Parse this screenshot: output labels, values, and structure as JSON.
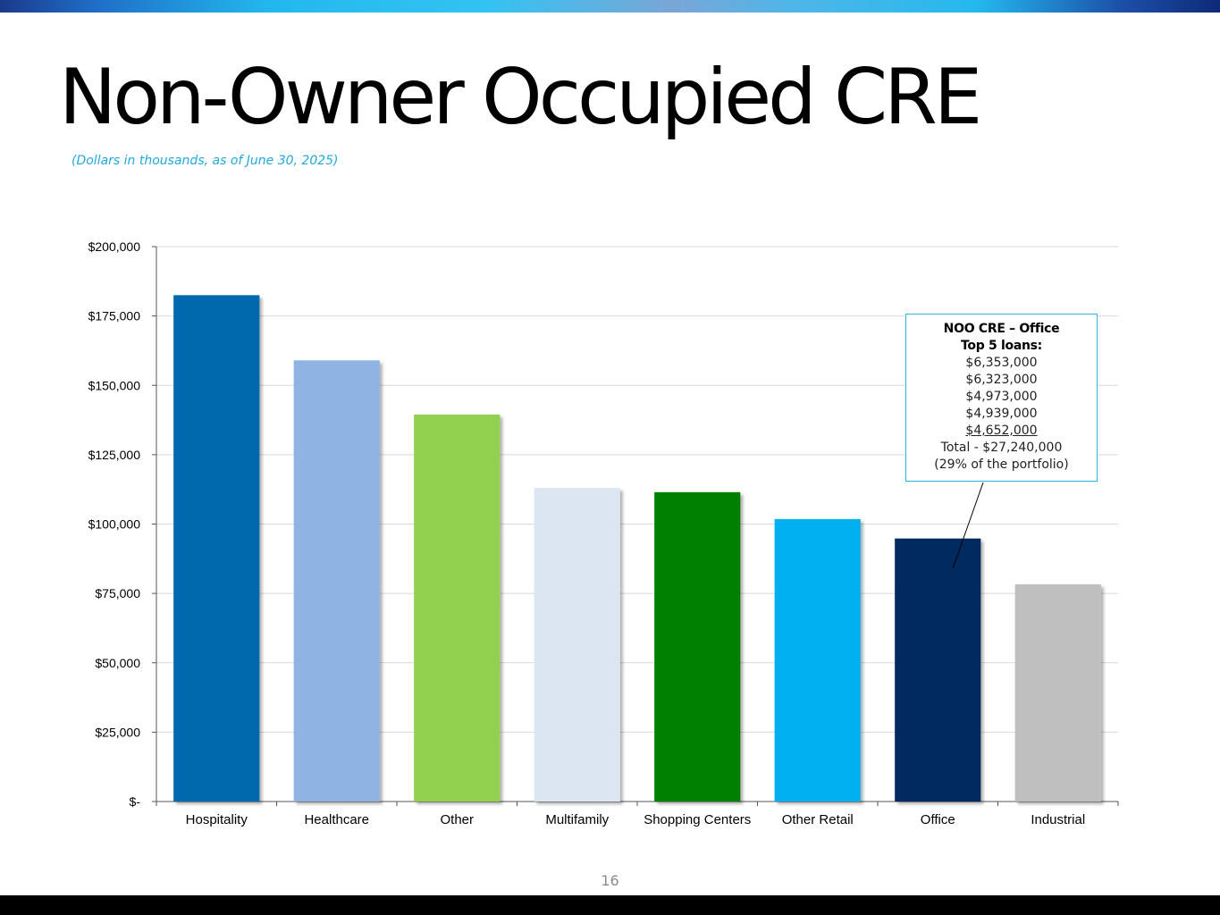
{
  "slide": {
    "title": "Non-Owner Occupied CRE",
    "subtitle": "(Dollars in thousands, as of June 30, 2025)",
    "page_number": "16"
  },
  "callout": {
    "heading": "NOO CRE – Office",
    "subheading": "Top 5 loans:",
    "loans": [
      "$6,353,000",
      "$6,323,000",
      "$4,973,000",
      "$4,939,000",
      "$4,652,000"
    ],
    "total": "Total - $27,240,000",
    "share": "(29% of the portfolio)",
    "points_to": "Office"
  },
  "chart_data": {
    "type": "bar",
    "categories": [
      "Hospitality",
      "Healthcare",
      "Other",
      "Multifamily",
      "Shopping Centers",
      "Other Retail",
      "Office",
      "Industrial"
    ],
    "values": [
      182500,
      159000,
      139500,
      113000,
      111500,
      101800,
      94800,
      78300
    ],
    "colors": [
      "#0068ac",
      "#8fb3e2",
      "#92d050",
      "#dce6f2",
      "#008000",
      "#00b0f0",
      "#002c60",
      "#bfbfbf"
    ],
    "yticks": [
      0,
      25000,
      50000,
      75000,
      100000,
      125000,
      150000,
      175000,
      200000
    ],
    "ytick_labels": [
      "$-",
      "$25,000",
      "$50,000",
      "$75,000",
      "$100,000",
      "$125,000",
      "$150,000",
      "$175,000",
      "$200,000"
    ],
    "ylim": [
      0,
      200000
    ],
    "title": "",
    "xlabel": "",
    "ylabel": "",
    "grid": true,
    "legend": "none"
  }
}
